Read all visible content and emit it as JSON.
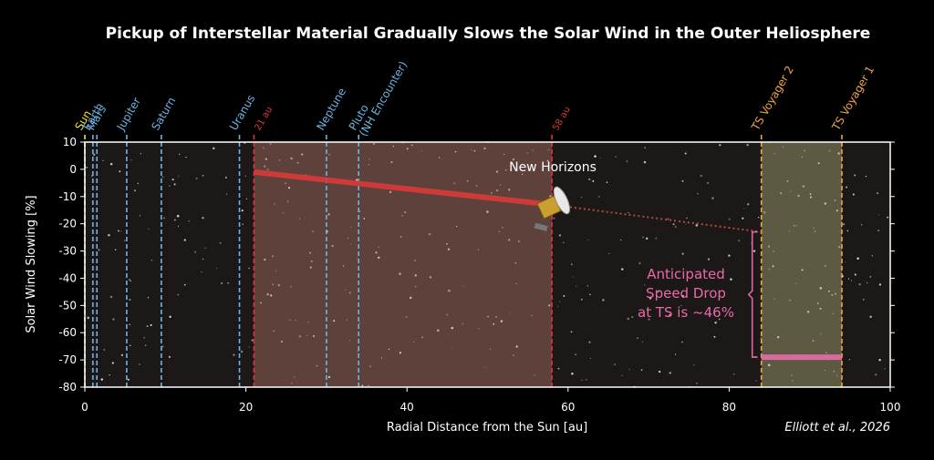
{
  "chart_data": {
    "type": "line",
    "title": "Pickup of Interstellar Material Gradually Slows the Solar Wind in the Outer Heliosphere",
    "xlabel": "Radial Distance from the Sun [au]",
    "ylabel": "Solar Wind Slowing [%]",
    "credit": "Elliott et al., 2026",
    "xlim": [
      0,
      100
    ],
    "ylim": [
      -80,
      10
    ],
    "xticks": [
      0,
      20,
      40,
      60,
      80,
      100
    ],
    "yticks": [
      10,
      0,
      -10,
      -20,
      -30,
      -40,
      -50,
      -60,
      -70,
      -80
    ],
    "regions": [
      {
        "x": [
          21,
          58
        ],
        "color": "rgba(200,135,115,0.38)"
      },
      {
        "x": [
          84,
          94
        ],
        "color": "rgba(190,190,130,0.40)"
      }
    ],
    "markers": [
      {
        "label": [
          "Sun"
        ],
        "x": 0,
        "color": "#f2e33a",
        "label_size": "normal"
      },
      {
        "label": [
          "Earth"
        ],
        "x": 1,
        "color": "#6cb4e4",
        "label_size": "normal"
      },
      {
        "label": [
          "Mars"
        ],
        "x": 1.5,
        "color": "#6cb4e4",
        "label_size": "normal"
      },
      {
        "label": [
          "Jupiter"
        ],
        "x": 5.2,
        "color": "#6cb4e4",
        "label_size": "normal"
      },
      {
        "label": [
          "Saturn"
        ],
        "x": 9.5,
        "color": "#6cb4e4",
        "label_size": "normal"
      },
      {
        "label": [
          "Uranus"
        ],
        "x": 19.2,
        "color": "#6cb4e4",
        "label_size": "normal"
      },
      {
        "label": [
          "21 au"
        ],
        "x": 21,
        "color": "#e03535",
        "label_size": "small"
      },
      {
        "label": [
          "Neptune"
        ],
        "x": 30,
        "color": "#6cb4e4",
        "label_size": "normal"
      },
      {
        "label": [
          "Pluto",
          "(NH Encounter)"
        ],
        "x": 34,
        "color": "#6cb4e4",
        "label_size": "normal"
      },
      {
        "label": [
          "58 au"
        ],
        "x": 58,
        "color": "#e03535",
        "label_size": "small"
      },
      {
        "label": [
          "TS Voyager 2"
        ],
        "x": 84,
        "color": "#f0a545",
        "label_size": "normal"
      },
      {
        "label": [
          "TS Voyager 1"
        ],
        "x": 94,
        "color": "#f0a545",
        "label_size": "normal"
      }
    ],
    "series": [
      {
        "x": [
          21,
          58
        ],
        "values": [
          -1,
          -13
        ],
        "color": "#d83a3a",
        "style": "solid"
      },
      {
        "x": [
          58,
          84
        ],
        "values": [
          -13,
          -23
        ],
        "color": "#c0503a",
        "style": "dotted"
      },
      {
        "x": [
          84,
          94
        ],
        "values": [
          -69,
          -69
        ],
        "color": "#e86aa8",
        "style": "solid"
      }
    ],
    "spacecraft_label": "New Horizons",
    "annotation": [
      "Anticipated",
      "Speed Drop",
      "at TS is ~46%"
    ],
    "annotation_color": "#e86aa8"
  }
}
